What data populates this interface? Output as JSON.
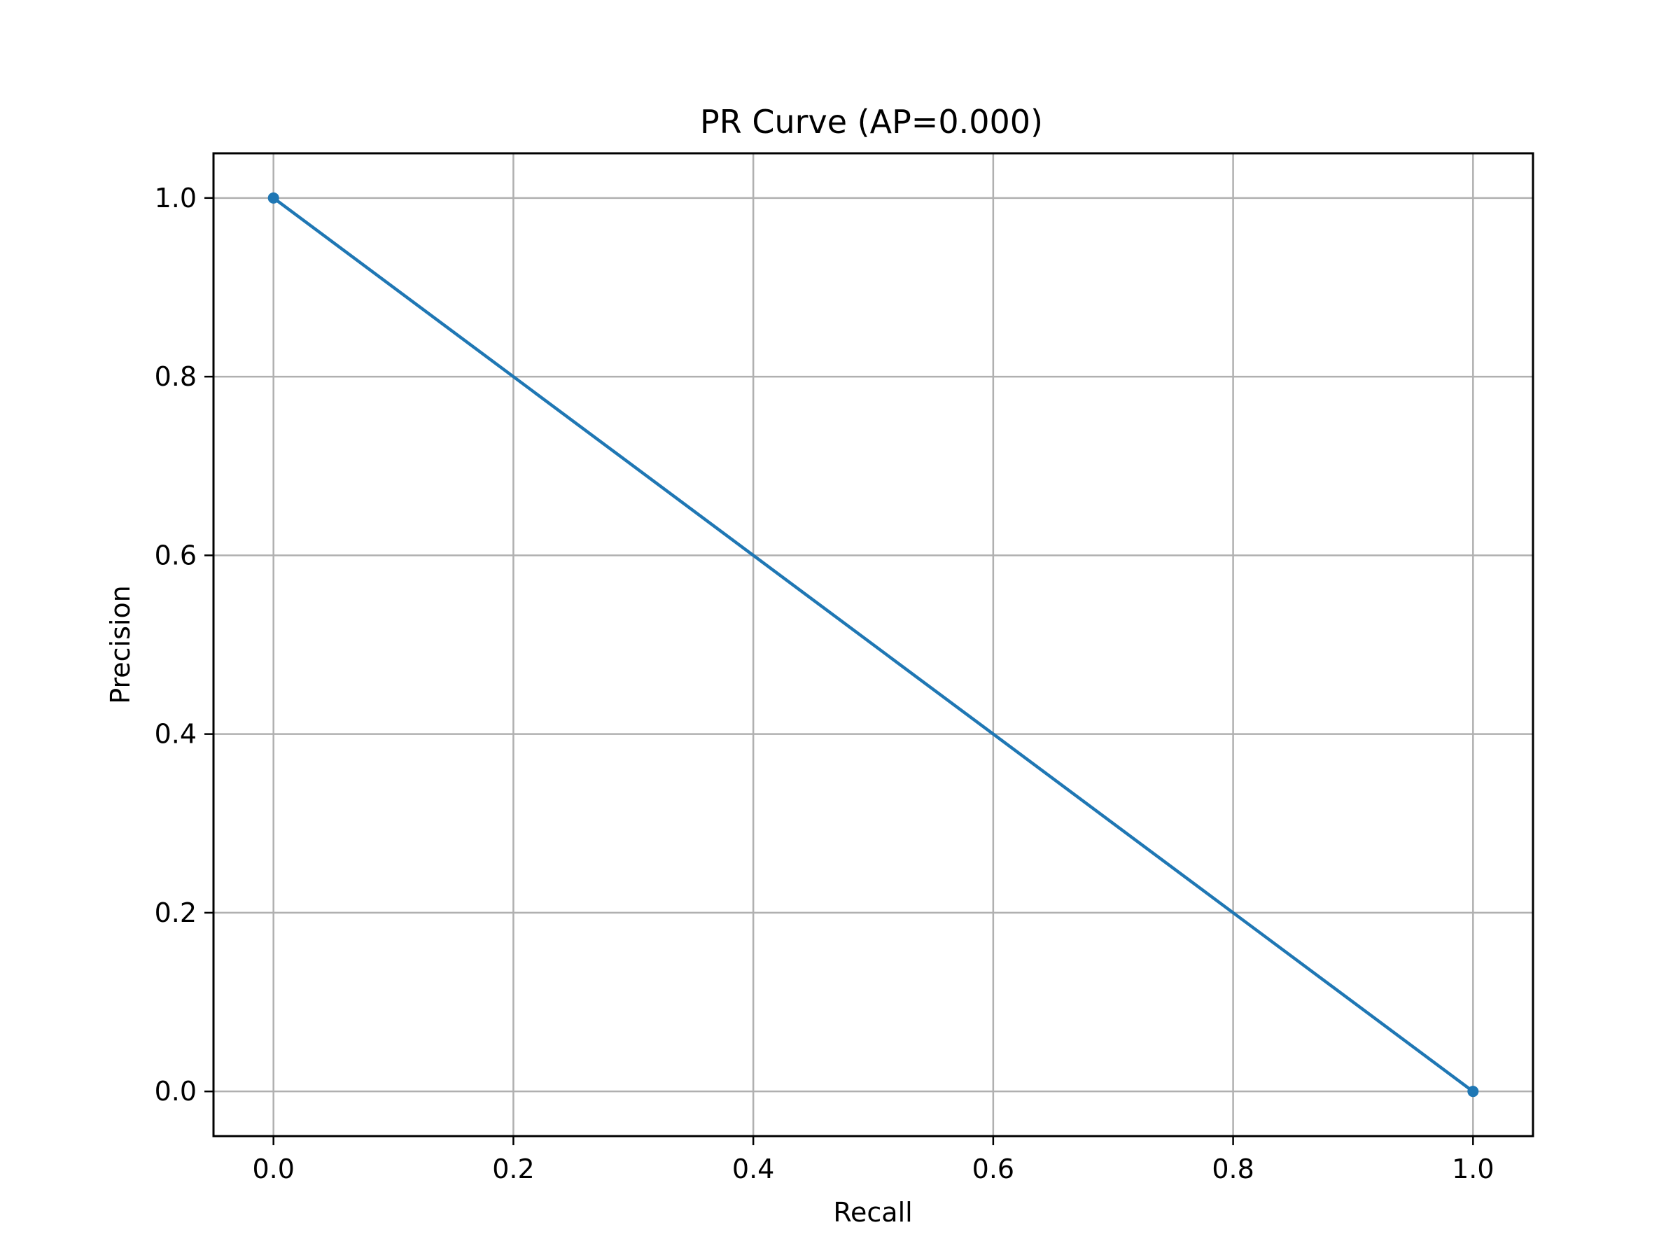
{
  "chart_data": {
    "type": "line",
    "title": "PR Curve (AP=0.000)",
    "xlabel": "Recall",
    "ylabel": "Precision",
    "xlim": [
      -0.05,
      1.05
    ],
    "ylim": [
      -0.05,
      1.05
    ],
    "xticks": [
      0.0,
      0.2,
      0.4,
      0.6,
      0.8,
      1.0
    ],
    "yticks": [
      0.0,
      0.2,
      0.4,
      0.6,
      0.8,
      1.0
    ],
    "xtick_labels": [
      "0.0",
      "0.2",
      "0.4",
      "0.6",
      "0.8",
      "1.0"
    ],
    "ytick_labels": [
      "0.0",
      "0.2",
      "0.4",
      "0.6",
      "0.8",
      "1.0"
    ],
    "grid": true,
    "legend": false,
    "series": [
      {
        "x": [
          0.0,
          1.0
        ],
        "y": [
          1.0,
          0.0
        ],
        "color": "#1f77b4",
        "marker": "circle"
      }
    ]
  }
}
